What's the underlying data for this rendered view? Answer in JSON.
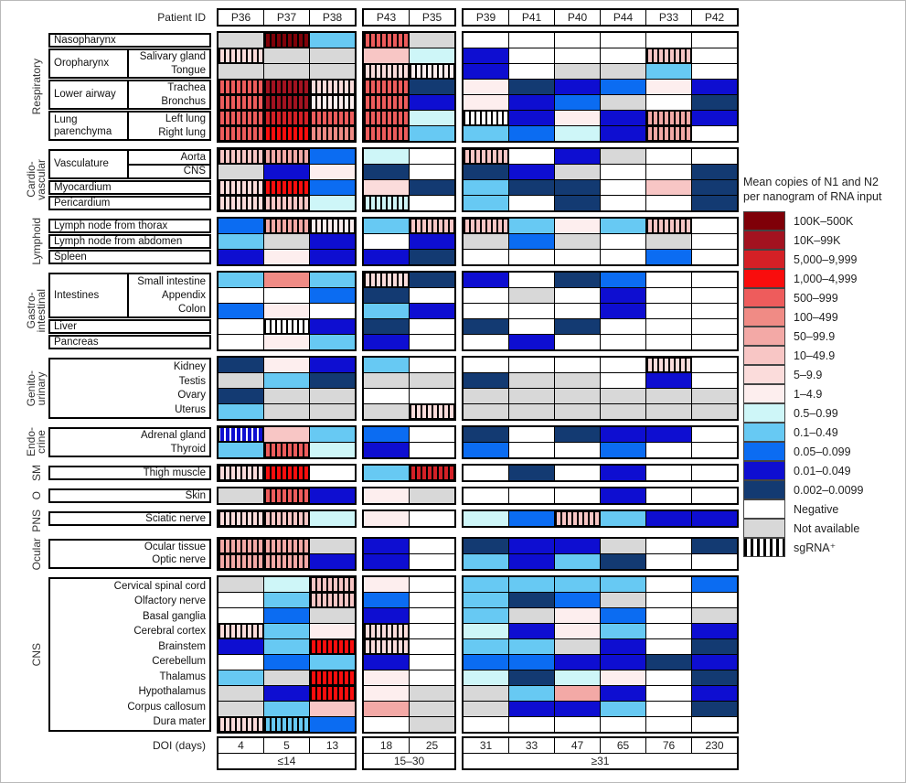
{
  "legend": {
    "title_line1": "Mean copies of N1 and N2",
    "title_line2": "per nanogram of RNA input"
  },
  "chart_data": {
    "type": "heatmap",
    "header_label": "Patient ID",
    "doi_label": "DOI (days)",
    "columns": [
      "P36",
      "P37",
      "P38",
      "P43",
      "P35",
      "P39",
      "P41",
      "P40",
      "P44",
      "P33",
      "P42"
    ],
    "doi_days": [
      "4",
      "5",
      "13",
      "18",
      "25",
      "31",
      "33",
      "47",
      "65",
      "76",
      "230"
    ],
    "column_groups": [
      {
        "start": 0,
        "count": 3,
        "label": "≤14"
      },
      {
        "start": 3,
        "count": 2,
        "label": "15–30"
      },
      {
        "start": 5,
        "count": 6,
        "label": "≥31"
      }
    ],
    "cell_code_note": "codes 0-14 = bins of value_scale high to low; N = Negative; X = Not available; suffix s = sgRNA+ striped",
    "value_scale": [
      {
        "code": "0",
        "label": "100K–500K",
        "color": "#7f0008"
      },
      {
        "code": "1",
        "label": "10K–99K",
        "color": "#a31220"
      },
      {
        "code": "2",
        "label": "5,000–9,999",
        "color": "#d42026"
      },
      {
        "code": "3",
        "label": "1,000–4,999",
        "color": "#f90d0d"
      },
      {
        "code": "4",
        "label": "500–999",
        "color": "#ee5c5c"
      },
      {
        "code": "5",
        "label": "100–499",
        "color": "#f08b85"
      },
      {
        "code": "6",
        "label": "50–99.9",
        "color": "#f3a9a6"
      },
      {
        "code": "7",
        "label": "10–49.9",
        "color": "#f8c6c5"
      },
      {
        "code": "8",
        "label": "5–9.9",
        "color": "#fbdcdb"
      },
      {
        "code": "9",
        "label": "1–4.9",
        "color": "#fdeeee"
      },
      {
        "code": "10",
        "label": "0.5–0.99",
        "color": "#cef6f8"
      },
      {
        "code": "11",
        "label": "0.1–0.49",
        "color": "#67c9f3"
      },
      {
        "code": "12",
        "label": "0.05–0.099",
        "color": "#0b6cf2"
      },
      {
        "code": "13",
        "label": "0.01–0.049",
        "color": "#0e0ed1"
      },
      {
        "code": "14",
        "label": "0.002–0.0099",
        "color": "#133a72"
      },
      {
        "code": "N",
        "label": "Negative",
        "color": "#ffffff"
      },
      {
        "code": "X",
        "label": "Not available",
        "color": "#d8d8d8"
      },
      {
        "code": "S",
        "label": "sgRNA⁺",
        "pattern": "stripes"
      }
    ],
    "blocks": [
      {
        "system": "Respiratory",
        "units": [
          {
            "type": "plain",
            "span": 1,
            "label": "Nasopharynx"
          },
          {
            "type": "split",
            "span": 2,
            "left": "Oropharynx",
            "right": [
              "Salivary gland",
              "Tongue"
            ]
          },
          {
            "type": "split",
            "span": 2,
            "left": "Lower airway",
            "right": [
              "Trachea",
              "Bronchus"
            ]
          },
          {
            "type": "split",
            "span": 2,
            "left": "Lung parenchyma",
            "right": [
              "Left lung",
              "Right lung"
            ]
          }
        ],
        "rows": [
          {
            "tissue": "Nasopharynx",
            "cells": [
              "X",
              "0s",
              "11",
              "4s",
              "X",
              "N",
              "N",
              "N",
              "N",
              "N",
              "N"
            ]
          },
          {
            "tissue": "Salivary gland",
            "cells": [
              "8s",
              "X",
              "X",
              "7",
              "10",
              "13",
              "N",
              "N",
              "N",
              "7s",
              "N"
            ]
          },
          {
            "tissue": "Tongue",
            "cells": [
              "X",
              "X",
              "X",
              "8s",
              "9s",
              "13",
              "N",
              "X",
              "X",
              "11",
              "N"
            ]
          },
          {
            "tissue": "Trachea",
            "cells": [
              "4s",
              "1s",
              "8s",
              "4s",
              "14",
              "9",
              "14",
              "13",
              "12",
              "9",
              "13"
            ]
          },
          {
            "tissue": "Bronchus",
            "cells": [
              "4s",
              "1s",
              "9s",
              "4s",
              "13",
              "9",
              "13",
              "12",
              "X",
              "N",
              "14"
            ]
          },
          {
            "tissue": "Left lung",
            "cells": [
              "4s",
              "2s",
              "4s",
              "4s",
              "10",
              "Ns",
              "13",
              "9",
              "13",
              "6s",
              "13"
            ]
          },
          {
            "tissue": "Right lung",
            "cells": [
              "4s",
              "3s",
              "5s",
              "4s",
              "11",
              "11",
              "12",
              "10",
              "13",
              "6s",
              "N"
            ]
          }
        ]
      },
      {
        "system": "Cardio-\nvascular",
        "units": [
          {
            "type": "split",
            "span": 2,
            "left": "Vasculature",
            "right": [
              "Aorta",
              "CNS"
            ],
            "divided": true
          },
          {
            "type": "plain",
            "span": 1,
            "label": "Myocardium"
          },
          {
            "type": "plain",
            "span": 1,
            "label": "Pericardium"
          }
        ],
        "rows": [
          {
            "tissue": "Aorta",
            "cells": [
              "7s",
              "6s",
              "12",
              "10",
              "N",
              "7s",
              "N",
              "13",
              "X",
              "N",
              "N"
            ]
          },
          {
            "tissue": "CNS",
            "cells": [
              "X",
              "13",
              "9",
              "14",
              "N",
              "14",
              "13",
              "X",
              "N",
              "N",
              "14"
            ]
          },
          {
            "tissue": "Myocardium",
            "cells": [
              "8s",
              "3s",
              "12",
              "8",
              "14",
              "11",
              "14",
              "14",
              "N",
              "7",
              "14"
            ]
          },
          {
            "tissue": "Pericardium",
            "cells": [
              "8s",
              "7s",
              "10",
              "10s",
              "N",
              "11",
              "N",
              "14",
              "N",
              "N",
              "14"
            ]
          }
        ]
      },
      {
        "system": "Lymphoid",
        "units": [
          {
            "type": "plain",
            "span": 1,
            "label": "Lymph node from thorax"
          },
          {
            "type": "plain",
            "span": 1,
            "label": "Lymph node from abdomen"
          },
          {
            "type": "plain",
            "span": 1,
            "label": "Spleen"
          }
        ],
        "rows": [
          {
            "tissue": "Lymph node from thorax",
            "cells": [
              "12",
              "6s",
              "9s",
              "11",
              "7s",
              "7s",
              "11",
              "9",
              "11",
              "7s",
              "N"
            ]
          },
          {
            "tissue": "Lymph node from abdomen",
            "cells": [
              "11",
              "X",
              "13",
              "N",
              "13",
              "X",
              "12",
              "X",
              "N",
              "X",
              "N"
            ]
          },
          {
            "tissue": "Spleen",
            "cells": [
              "13",
              "9",
              "13",
              "13",
              "14",
              "N",
              "N",
              "N",
              "N",
              "12",
              "N"
            ]
          }
        ]
      },
      {
        "system": "Gastro-\nintestinal",
        "units": [
          {
            "type": "split",
            "span": 3,
            "left": "Intestines",
            "right": [
              "Small intestine",
              "Appendix",
              "Colon"
            ]
          },
          {
            "type": "plain",
            "span": 1,
            "label": "Liver"
          },
          {
            "type": "plain",
            "span": 1,
            "label": "Pancreas"
          }
        ],
        "rows": [
          {
            "tissue": "Small intestine",
            "cells": [
              "11",
              "5",
              "11",
              "8s",
              "14",
              "13",
              "N",
              "14",
              "12",
              "N",
              "N"
            ]
          },
          {
            "tissue": "Appendix",
            "cells": [
              "N",
              "N",
              "12",
              "14",
              "N",
              "N",
              "X",
              "N",
              "13",
              "N",
              "N"
            ]
          },
          {
            "tissue": "Colon",
            "cells": [
              "12",
              "9",
              "N",
              "11",
              "13",
              "N",
              "N",
              "N",
              "13",
              "N",
              "N"
            ]
          },
          {
            "tissue": "Liver",
            "cells": [
              "N",
              "Ns",
              "13",
              "14",
              "N",
              "14",
              "N",
              "14",
              "N",
              "N",
              "N"
            ]
          },
          {
            "tissue": "Pancreas",
            "cells": [
              "N",
              "9",
              "11",
              "13",
              "N",
              "N",
              "13",
              "N",
              "N",
              "N",
              "N"
            ]
          }
        ]
      },
      {
        "system": "Genito-\nurinary",
        "units": [
          {
            "type": "stack",
            "span": 4,
            "labels": [
              "Kidney",
              "Testis",
              "Ovary",
              "Uterus"
            ]
          }
        ],
        "rows": [
          {
            "tissue": "Kidney",
            "cells": [
              "14",
              "9",
              "13",
              "11",
              "N",
              "N",
              "N",
              "N",
              "N",
              "8s",
              "N"
            ]
          },
          {
            "tissue": "Testis",
            "cells": [
              "X",
              "11",
              "14",
              "X",
              "X",
              "14",
              "X",
              "X",
              "N",
              "13",
              "N"
            ]
          },
          {
            "tissue": "Ovary",
            "cells": [
              "14",
              "X",
              "X",
              "N",
              "N",
              "X",
              "X",
              "X",
              "X",
              "X",
              "X"
            ]
          },
          {
            "tissue": "Uterus",
            "cells": [
              "11",
              "X",
              "X",
              "X",
              "8s",
              "X",
              "X",
              "X",
              "X",
              "X",
              "X"
            ]
          }
        ]
      },
      {
        "system": "Endo-\ncrine",
        "units": [
          {
            "type": "stack",
            "span": 2,
            "labels": [
              "Adrenal gland",
              "Thyroid"
            ]
          }
        ],
        "rows": [
          {
            "tissue": "Adrenal gland",
            "cells": [
              "13s",
              "7",
              "11",
              "12",
              "N",
              "14",
              "N",
              "14",
              "13",
              "13",
              "N"
            ]
          },
          {
            "tissue": "Thyroid",
            "cells": [
              "11",
              "4s",
              "10",
              "13",
              "N",
              "12",
              "N",
              "N",
              "12",
              "N",
              "N"
            ]
          }
        ]
      },
      {
        "system": "SM",
        "units": [
          {
            "type": "stack",
            "span": 1,
            "labels": [
              "Thigh muscle"
            ]
          }
        ],
        "rows": [
          {
            "tissue": "Thigh muscle",
            "cells": [
              "8s",
              "3s",
              "N",
              "11",
              "2s",
              "N",
              "14",
              "N",
              "13",
              "N",
              "N"
            ]
          }
        ]
      },
      {
        "system": "O",
        "units": [
          {
            "type": "stack",
            "span": 1,
            "labels": [
              "Skin"
            ]
          }
        ],
        "rows": [
          {
            "tissue": "Skin",
            "cells": [
              "X",
              "4s",
              "13",
              "9",
              "X",
              "N",
              "N",
              "N",
              "13",
              "N",
              "N"
            ]
          }
        ]
      },
      {
        "system": "PNS",
        "units": [
          {
            "type": "stack",
            "span": 1,
            "labels": [
              "Sciatic nerve"
            ]
          }
        ],
        "rows": [
          {
            "tissue": "Sciatic nerve",
            "cells": [
              "8s",
              "7s",
              "10",
              "9",
              "N",
              "10",
              "12",
              "7s",
              "11",
              "13",
              "13"
            ]
          }
        ]
      },
      {
        "system": "Ocular",
        "units": [
          {
            "type": "stack",
            "span": 2,
            "labels": [
              "Ocular tissue",
              "Optic nerve"
            ]
          }
        ],
        "rows": [
          {
            "tissue": "Ocular tissue",
            "cells": [
              "6s",
              "6s",
              "X",
              "13",
              "N",
              "14",
              "13",
              "13",
              "X",
              "N",
              "14"
            ]
          },
          {
            "tissue": "Optic nerve",
            "cells": [
              "6s",
              "6s",
              "13",
              "13",
              "N",
              "11",
              "13",
              "11",
              "14",
              "N",
              "N"
            ]
          }
        ]
      },
      {
        "system": "CNS",
        "units": [
          {
            "type": "stack",
            "span": 10,
            "labels": [
              "Cervical spinal cord",
              "Olfactory nerve",
              "Basal ganglia",
              "Cerebral cortex",
              "Brainstem",
              "Cerebellum",
              "Thalamus",
              "Hypothalamus",
              "Corpus callosum",
              "Dura mater"
            ]
          }
        ],
        "rows": [
          {
            "tissue": "Cervical spinal cord",
            "cells": [
              "X",
              "10",
              "7s",
              "9",
              "N",
              "11",
              "11",
              "11",
              "11",
              "N",
              "12"
            ]
          },
          {
            "tissue": "Olfactory nerve",
            "cells": [
              "N",
              "11",
              "7s",
              "12",
              "N",
              "11",
              "14",
              "12",
              "X",
              "N",
              "N"
            ]
          },
          {
            "tissue": "Basal ganglia",
            "cells": [
              "N",
              "12",
              "X",
              "13",
              "N",
              "11",
              "X",
              "9",
              "12",
              "N",
              "X"
            ]
          },
          {
            "tissue": "Cerebral cortex",
            "cells": [
              "8s",
              "11",
              "9",
              "8s",
              "N",
              "10",
              "13",
              "9",
              "11",
              "N",
              "13"
            ]
          },
          {
            "tissue": "Brainstem",
            "cells": [
              "13",
              "11",
              "3s",
              "8s",
              "N",
              "11",
              "11",
              "X",
              "13",
              "N",
              "14"
            ]
          },
          {
            "tissue": "Cerebellum",
            "cells": [
              "N",
              "12",
              "11",
              "13",
              "N",
              "12",
              "12",
              "13",
              "13",
              "14",
              "13"
            ]
          },
          {
            "tissue": "Thalamus",
            "cells": [
              "11",
              "X",
              "3s",
              "9",
              "N",
              "10",
              "14",
              "10",
              "9",
              "N",
              "14"
            ]
          },
          {
            "tissue": "Hypothalamus",
            "cells": [
              "X",
              "13",
              "3s",
              "9",
              "X",
              "X",
              "11",
              "6",
              "13",
              "N",
              "13"
            ]
          },
          {
            "tissue": "Corpus callosum",
            "cells": [
              "X",
              "11",
              "7",
              "6",
              "X",
              "X",
              "13",
              "13",
              "11",
              "N",
              "14"
            ]
          },
          {
            "tissue": "Dura mater",
            "cells": [
              "8s",
              "11s",
              "12",
              "N",
              "X",
              "N",
              "N",
              "N",
              "N",
              "N",
              "N"
            ]
          }
        ]
      }
    ]
  }
}
